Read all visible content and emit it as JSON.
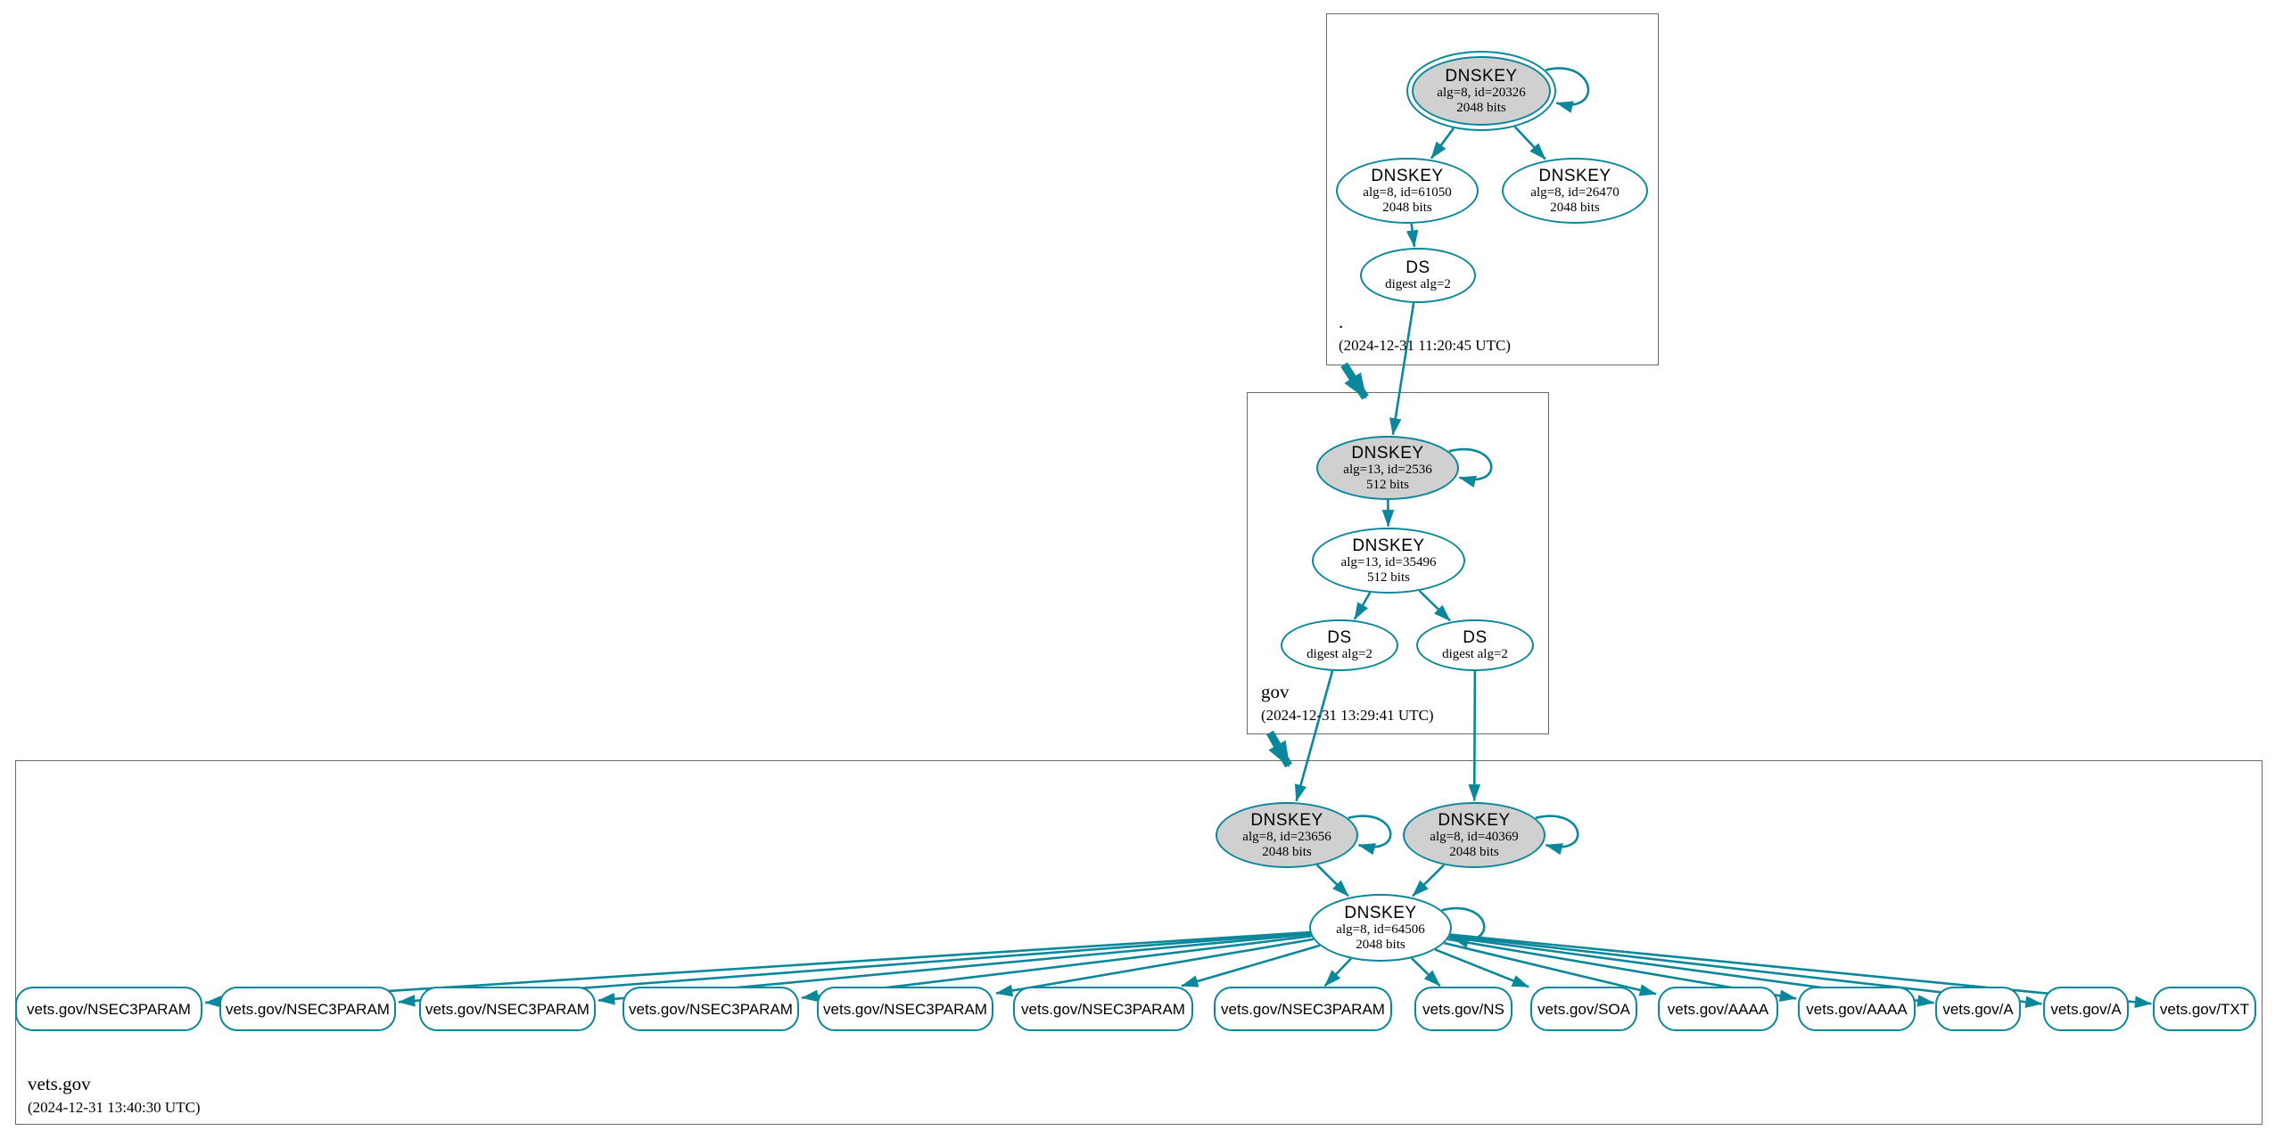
{
  "colors": {
    "edge": "#0a879a",
    "ksk_fill": "#d0d0d0",
    "node_fill": "#ffffff",
    "zone_border": "#6a6a6a",
    "text": "#000000",
    "background": "#ffffff"
  },
  "zones": {
    "root": {
      "name": ".",
      "timestamp": "(2024-12-31 11:20:45 UTC)"
    },
    "gov": {
      "name": "gov",
      "timestamp": "(2024-12-31 13:29:41 UTC)"
    },
    "vets": {
      "name": "vets.gov",
      "timestamp": "(2024-12-31 13:40:30 UTC)"
    }
  },
  "nodes": {
    "key20326": {
      "title": "DNSKEY",
      "line1": "alg=8, id=20326",
      "line2": "2048 bits"
    },
    "key61050": {
      "title": "DNSKEY",
      "line1": "alg=8, id=61050",
      "line2": "2048 bits"
    },
    "key26470": {
      "title": "DNSKEY",
      "line1": "alg=8, id=26470",
      "line2": "2048 bits"
    },
    "ds_root": {
      "title": "DS",
      "line1": "digest alg=2"
    },
    "key2536": {
      "title": "DNSKEY",
      "line1": "alg=13, id=2536",
      "line2": "512 bits"
    },
    "key35496": {
      "title": "DNSKEY",
      "line1": "alg=13, id=35496",
      "line2": "512 bits"
    },
    "ds_gov1": {
      "title": "DS",
      "line1": "digest alg=2"
    },
    "ds_gov2": {
      "title": "DS",
      "line1": "digest alg=2"
    },
    "key23656": {
      "title": "DNSKEY",
      "line1": "alg=8, id=23656",
      "line2": "2048 bits"
    },
    "key40369": {
      "title": "DNSKEY",
      "line1": "alg=8, id=40369",
      "line2": "2048 bits"
    },
    "key64506": {
      "title": "DNSKEY",
      "line1": "alg=8, id=64506",
      "line2": "2048 bits"
    }
  },
  "rrsets": [
    "vets.gov/NSEC3PARAM",
    "vets.gov/NSEC3PARAM",
    "vets.gov/NSEC3PARAM",
    "vets.gov/NSEC3PARAM",
    "vets.gov/NSEC3PARAM",
    "vets.gov/NSEC3PARAM",
    "vets.gov/NSEC3PARAM",
    "vets.gov/NS",
    "vets.gov/SOA",
    "vets.gov/AAAA",
    "vets.gov/AAAA",
    "vets.gov/A",
    "vets.gov/A",
    "vets.gov/TXT"
  ],
  "edges": {
    "signs": [
      [
        "key20326",
        "key61050"
      ],
      [
        "key20326",
        "key26470"
      ],
      [
        "key61050",
        "ds_root"
      ],
      [
        "ds_root",
        "key2536"
      ],
      [
        "key2536",
        "key35496"
      ],
      [
        "key35496",
        "ds_gov1"
      ],
      [
        "key35496",
        "ds_gov2"
      ],
      [
        "ds_gov1",
        "key23656"
      ],
      [
        "ds_gov2",
        "key40369"
      ],
      [
        "key23656",
        "key64506"
      ],
      [
        "key40369",
        "key64506"
      ]
    ],
    "self_signed": [
      "key20326",
      "key2536",
      "key23656",
      "key40369",
      "key64506"
    ],
    "rrset_signer": "key64506"
  }
}
